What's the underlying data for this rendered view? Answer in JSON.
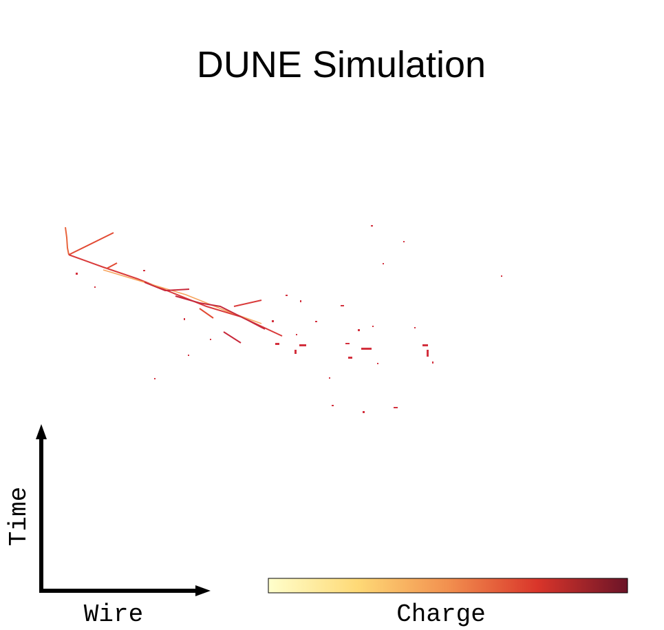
{
  "title": "DUNE Simulation",
  "axes": {
    "vertical": "Time",
    "horizontal": "Wire"
  },
  "colorbar": {
    "label": "Charge"
  }
}
